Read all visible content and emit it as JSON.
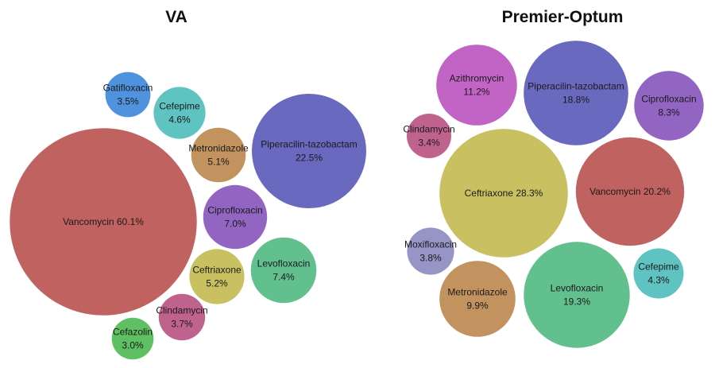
{
  "chart_data": [
    {
      "type": "bubble",
      "title": "VA",
      "unit": "%",
      "bubbles": [
        {
          "id": "va-vancomycin",
          "name": "Vancomycin",
          "value": 60.1,
          "label": [
            "Vancomycin 60.1%"
          ],
          "color": "#C0625F"
        },
        {
          "id": "va-piperacilin-tazobactam",
          "name": "Piperacilin-tazobactam",
          "value": 22.5,
          "label": [
            "Piperacilin-tazobactam",
            "22.5%"
          ],
          "color": "#6969BF"
        },
        {
          "id": "va-levofloxacin",
          "name": "Levofloxacin",
          "value": 7.4,
          "label": [
            "Levofloxacin",
            "7.4%"
          ],
          "color": "#62BF8E"
        },
        {
          "id": "va-ciprofloxacin",
          "name": "Ciprofloxacin",
          "value": 7.0,
          "label": [
            "Ciprofloxacin",
            "7.0%"
          ],
          "color": "#9265C2"
        },
        {
          "id": "va-ceftriaxone",
          "name": "Ceftriaxone",
          "value": 5.2,
          "label": [
            "Ceftriaxone",
            "5.2%"
          ],
          "color": "#C8C061"
        },
        {
          "id": "va-metronidazole",
          "name": "Metronidazole",
          "value": 5.1,
          "label": [
            "Metronidazole",
            "5.1%"
          ],
          "color": "#C2935F"
        },
        {
          "id": "va-cefepime",
          "name": "Cefepime",
          "value": 4.6,
          "label": [
            "Cefepime",
            "4.6%"
          ],
          "color": "#5FC3C1"
        },
        {
          "id": "va-clindamycin",
          "name": "Clindamycin",
          "value": 3.7,
          "label": [
            "Clindamycin",
            "3.7%"
          ],
          "color": "#C0628E"
        },
        {
          "id": "va-gatifloxacin",
          "name": "Gatifloxacin",
          "value": 3.5,
          "label": [
            "Gatifloxacin",
            "3.5%"
          ],
          "color": "#4F93DE"
        },
        {
          "id": "va-cefazolin",
          "name": "Cefazolin",
          "value": 3.0,
          "label": [
            "Cefazolin",
            "3.0%"
          ],
          "color": "#5FBF63"
        }
      ]
    },
    {
      "type": "bubble",
      "title": "Premier-Optum",
      "unit": "%",
      "bubbles": [
        {
          "id": "po-ceftriaxone",
          "name": "Ceftriaxone",
          "value": 28.3,
          "label": [
            "Ceftriaxone 28.3%"
          ],
          "color": "#C8C061"
        },
        {
          "id": "po-vancomycin",
          "name": "Vancomycin",
          "value": 20.2,
          "label": [
            "Vancomycin 20.2%"
          ],
          "color": "#C0625F"
        },
        {
          "id": "po-levofloxacin",
          "name": "Levofloxacin",
          "value": 19.3,
          "label": [
            "Levofloxacin",
            "19.3%"
          ],
          "color": "#62BF8E"
        },
        {
          "id": "po-piperacilin-tazobactam",
          "name": "Piperacilin-tazobactam",
          "value": 18.8,
          "label": [
            "Piperacilin-tazobactam",
            "18.8%"
          ],
          "color": "#6969BF"
        },
        {
          "id": "po-azithromycin",
          "name": "Azithromycin",
          "value": 11.2,
          "label": [
            "Azithromycin",
            "11.2%"
          ],
          "color": "#C264C6"
        },
        {
          "id": "po-metronidazole",
          "name": "Metronidazole",
          "value": 9.9,
          "label": [
            "Metronidazole",
            "9.9%"
          ],
          "color": "#C2935F"
        },
        {
          "id": "po-ciprofloxacin",
          "name": "Ciprofloxacin",
          "value": 8.3,
          "label": [
            "Ciprofloxacin",
            "8.3%"
          ],
          "color": "#9265C2"
        },
        {
          "id": "po-cefepime",
          "name": "Cefepime",
          "value": 4.3,
          "label": [
            "Cefepime",
            "4.3%"
          ],
          "color": "#5FC3C1"
        },
        {
          "id": "po-moxifloxacin",
          "name": "Moxifloxacin",
          "value": 3.8,
          "label": [
            "Moxifloxacin",
            "3.8%"
          ],
          "color": "#9794C6"
        },
        {
          "id": "po-clindamycin",
          "name": "Clindamycin",
          "value": 3.4,
          "label": [
            "Clindamycin",
            "3.4%"
          ],
          "color": "#C0628E"
        }
      ]
    }
  ]
}
